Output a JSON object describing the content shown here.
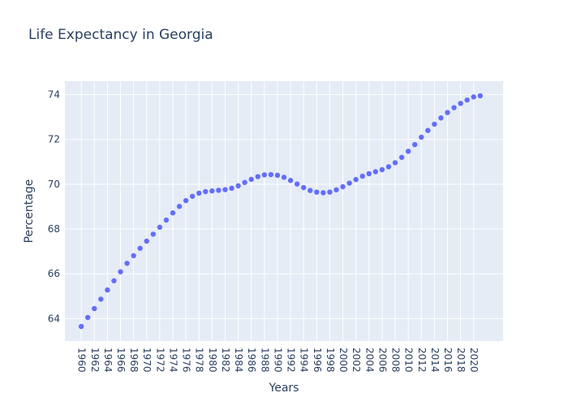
{
  "chart_data": {
    "type": "scatter",
    "title": "Life Expectancy in Georgia",
    "xlabel": "Years",
    "ylabel": "Percentage",
    "xlim": [
      1957.5,
      2024.5
    ],
    "ylim": [
      63,
      74.6
    ],
    "xticks": [
      1960,
      1962,
      1964,
      1966,
      1968,
      1970,
      1972,
      1974,
      1976,
      1978,
      1980,
      1982,
      1984,
      1986,
      1988,
      1990,
      1992,
      1994,
      1996,
      1998,
      2000,
      2002,
      2004,
      2006,
      2008,
      2010,
      2012,
      2014,
      2016,
      2018,
      2020
    ],
    "yticks": [
      64,
      66,
      68,
      70,
      72,
      74
    ],
    "grid": true,
    "marker_color": "#636efa",
    "plot_background": "#e5ecf6",
    "series": [
      {
        "x": [
          1960,
          1961,
          1962,
          1963,
          1964,
          1965,
          1966,
          1967,
          1968,
          1969,
          1970,
          1971,
          1972,
          1973,
          1974,
          1975,
          1976,
          1977,
          1978,
          1979,
          1980,
          1981,
          1982,
          1983,
          1984,
          1985,
          1986,
          1987,
          1988,
          1989,
          1990,
          1991,
          1992,
          1993,
          1994,
          1995,
          1996,
          1997,
          1998,
          1999,
          2000,
          2001,
          2002,
          2003,
          2004,
          2005,
          2006,
          2007,
          2008,
          2009,
          2010,
          2011,
          2012,
          2013,
          2014,
          2015,
          2016,
          2017,
          2018,
          2019,
          2020,
          2021
        ],
        "y": [
          63.65,
          64.05,
          64.45,
          64.87,
          65.28,
          65.69,
          66.09,
          66.47,
          66.81,
          67.14,
          67.46,
          67.77,
          68.08,
          68.4,
          68.72,
          69.01,
          69.27,
          69.46,
          69.6,
          69.67,
          69.7,
          69.73,
          69.76,
          69.82,
          69.93,
          70.08,
          70.22,
          70.34,
          70.42,
          70.43,
          70.4,
          70.31,
          70.17,
          70.01,
          69.85,
          69.72,
          69.65,
          69.62,
          69.65,
          69.75,
          69.89,
          70.05,
          70.21,
          70.36,
          70.47,
          70.56,
          70.65,
          70.78,
          70.96,
          71.2,
          71.47,
          71.77,
          72.1,
          72.4,
          72.68,
          72.96,
          73.2,
          73.42,
          73.61,
          73.76,
          73.9,
          73.95
        ]
      }
    ]
  }
}
